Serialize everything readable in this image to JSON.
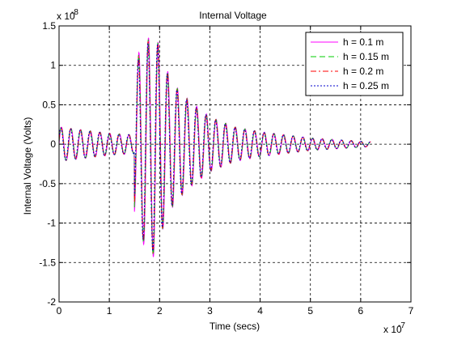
{
  "chart_data": {
    "type": "line",
    "title": "Internal Voltage",
    "xlabel": "Time (secs)",
    "ylabel": "Internal Voltage (Volts)",
    "x_exponent_label": "x 10",
    "x_exponent": "-7",
    "y_exponent_label": "x 10",
    "y_exponent": "-8",
    "xlim": [
      0,
      7
    ],
    "ylim": [
      -2,
      1.5
    ],
    "x_ticks": [
      "0",
      "1",
      "2",
      "3",
      "4",
      "5",
      "6",
      "7"
    ],
    "y_ticks": [
      "-2",
      "-1.5",
      "-1",
      "-0.5",
      "0",
      "0.5",
      "1",
      "1.5"
    ],
    "grid": true,
    "legend_position": "top-right",
    "signal": {
      "x_start": 0,
      "x_end": 6.2,
      "cycles_per_unit": 5.2,
      "envelope": [
        [
          0,
          0.22
        ],
        [
          1.0,
          0.14
        ],
        [
          1.5,
          0.12
        ],
        [
          1.5,
          0.9
        ],
        [
          1.6,
          1.2
        ],
        [
          1.9,
          1.45
        ],
        [
          2.1,
          1.0
        ],
        [
          2.3,
          0.75
        ],
        [
          2.6,
          0.55
        ],
        [
          3.0,
          0.35
        ],
        [
          3.5,
          0.22
        ],
        [
          4.0,
          0.16
        ],
        [
          5.0,
          0.08
        ],
        [
          6.2,
          0.03
        ]
      ]
    },
    "series": [
      {
        "name": "h = 0.1 m",
        "color": "#ff00ff",
        "dash": "solid",
        "scale": 1.0,
        "shift": 0.0
      },
      {
        "name": "h = 0.15 m",
        "color": "#00cc00",
        "dash": "dashed",
        "scale": 0.985,
        "shift": 0.004
      },
      {
        "name": "h = 0.2 m",
        "color": "#ff0000",
        "dash": "dashdot",
        "scale": 0.97,
        "shift": 0.008
      },
      {
        "name": "h = 0.25 m",
        "color": "#0000cc",
        "dash": "dotted",
        "scale": 0.955,
        "shift": 0.012
      }
    ]
  }
}
